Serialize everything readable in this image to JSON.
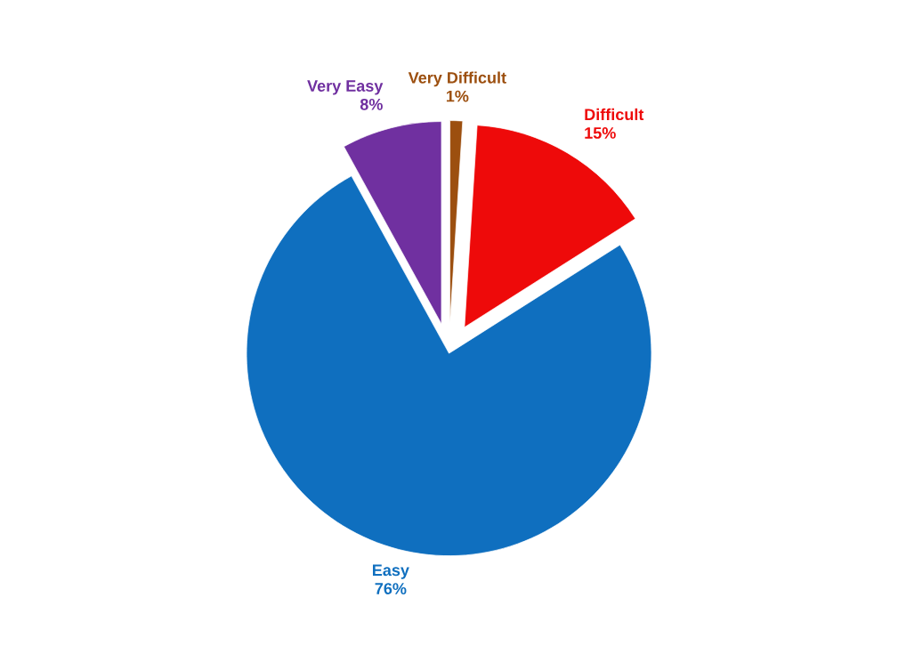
{
  "chart_data": {
    "type": "pie",
    "categories": [
      "Very Difficult",
      "Difficult",
      "Easy",
      "Very Easy"
    ],
    "values": [
      1,
      15,
      76,
      8
    ],
    "value_labels": [
      "1%",
      "15%",
      "76%",
      "8%"
    ],
    "colors": [
      "#9c4f0f",
      "#ee0a0a",
      "#0f6fbf",
      "#7030a0"
    ]
  }
}
